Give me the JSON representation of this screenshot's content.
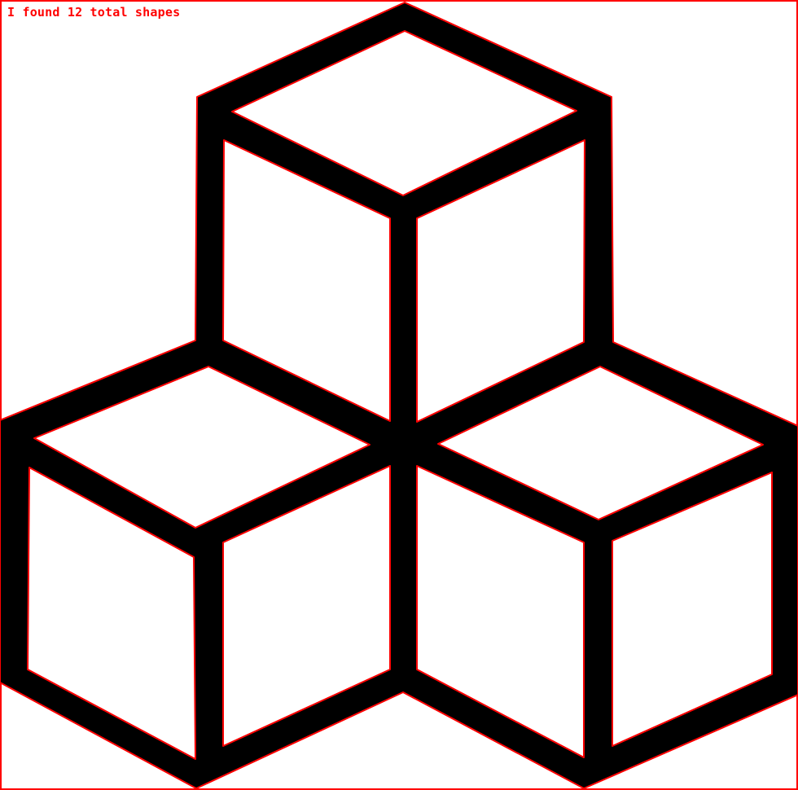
{
  "result_text": "I found 12 total shapes",
  "colors": {
    "background": "#ffffff",
    "fill": "#000000",
    "contour": "#ff0000"
  }
}
